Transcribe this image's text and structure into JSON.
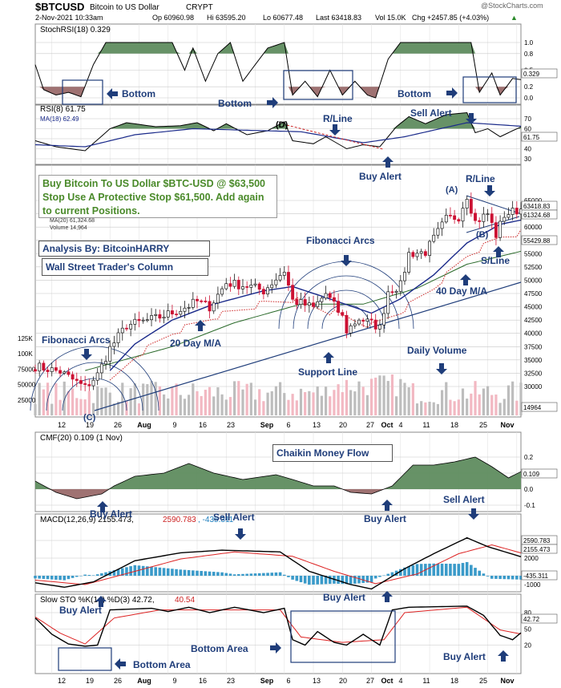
{
  "header": {
    "symbol": "$BTCUSD",
    "name": "Bitcoin to US Dollar",
    "exchange": "CRYPT",
    "date": "2-Nov-2021 10:33am",
    "open": "Op 60960.98",
    "high": "Hi 63595.20",
    "low": "Lo 60677.48",
    "last": "Last 63418.83",
    "volume": "Vol 15.0K",
    "change": "Chg +2457.85 (+4.03%)",
    "change_arrow": "▲",
    "copyright": "@StockCharts.com"
  },
  "colors": {
    "up": "#1a1a1a",
    "down": "#cc1133",
    "sma20": "#1a2a8a",
    "sma40": "#2a6a2a",
    "sar": "#cc2222",
    "grid": "#c8c8c8",
    "fill_green": "#5f8c5f",
    "fill_red": "#9a6a6a",
    "annotation": "#1f3d7a",
    "note_green": "#4a8a2a"
  },
  "x_axis_labels": [
    "12",
    "19",
    "26",
    "Aug",
    "9",
    "16",
    "23",
    "Sep",
    "6",
    "13",
    "20",
    "27",
    "Oct",
    "4",
    "11",
    "18",
    "25",
    "Nov"
  ],
  "panels": {
    "stochrsi": {
      "title": "StochRSI(18) 0.329",
      "last_value": "0.329",
      "ticks": [
        "1.0",
        "0.8",
        "0.5",
        "0.2",
        "0.0"
      ]
    },
    "rsi": {
      "title": "RSI(8) 61.75",
      "ma_label": "MA(18) 62.49",
      "last_value": "61.75",
      "ticks": [
        "70",
        "60",
        "50",
        "40",
        "30"
      ]
    },
    "price": {
      "legend_sma20": "MA(20) 61,324.68",
      "legend_sma40": "MA(40) 55,429.88",
      "legend_volume": "Volume 14,964",
      "ticks": [
        "65000",
        "62500",
        "60000",
        "57500",
        "55000",
        "52500",
        "50000",
        "47500",
        "45000",
        "42500",
        "40000",
        "37500",
        "35000",
        "32500",
        "30000"
      ],
      "last_price_tag": "63418.83",
      "sma20_tag": "61324.68",
      "sma40_tag": "55429.88",
      "volume_tag": "14964",
      "volume_ticks": [
        "125K",
        "100K",
        "75000",
        "50000",
        "25000"
      ]
    },
    "cmf": {
      "title": "CMF(20) 0.109 (1 Nov)",
      "last_value": "0.109",
      "ticks": [
        "0.2",
        "0.1",
        "0.0",
        "-0.1"
      ]
    },
    "macd": {
      "title_main": "MACD(12,26,9) 2155.473,",
      "title_signal": "2590.783",
      "title_hist": ", -435.311",
      "ticks": [
        "4000",
        "2000",
        "0",
        "-1000"
      ],
      "macd_tag": "2155.473",
      "signal_tag": "2590.783",
      "hist_tag": "-435.311"
    },
    "slowsto": {
      "title_main": "Slow STO %K(14) %D(3) 42.72,",
      "title_d": "40.54",
      "ticks": [
        "80",
        "50",
        "20"
      ],
      "k_tag": "42.72"
    }
  },
  "annotations": {
    "note_main": "Buy Bitcoin To US Dollar $BTC-USD @ $63,500 Stop Use A Protective Stop $61,500. Add again to current Positions.",
    "analysis_by": "Analysis By: BitcoinHARRY",
    "column": "Wall Street Trader's Column",
    "bottom_1": "Bottom",
    "bottom_2": "Bottom",
    "bottom_3": "Bottom",
    "r_line_rsi": "R/Line",
    "sell_alert_rsi": "Sell Alert",
    "buy_alert_rsi": "Buy Alert",
    "d_label": "(D)",
    "a_label": "(A)",
    "b_label": "(B)",
    "c_label": "(C)",
    "r_line_price": "R/Line",
    "s_line": "S/Line",
    "ma40_label": "40 Day M/A",
    "ma20_label": "20 Day M/A",
    "fib_arcs_1": "Fibonacci Arcs",
    "fib_arcs_2": "Fibonacci Arcs",
    "support_line": "Support Line",
    "daily_volume": "Daily Volume",
    "cmf_label": "Chaikin Money Flow",
    "buy_alert_cmf_1": "Buy Alert",
    "buy_alert_cmf_2": "Buy Alert",
    "sell_alert_macd_1": "Sell Alert",
    "sell_alert_macd_2": "Sell Alert",
    "buy_alert_macd": "Buy Alert",
    "buy_alert_sto_1": "Buy Alert",
    "buy_alert_sto_2": "Buy Alert",
    "bottom_area_1": "Bottom Area",
    "bottom_area_2": "Bottom Area"
  },
  "chart_data": {
    "type": "candlestick",
    "title": "$BTCUSD Bitcoin to US Dollar CRYPT",
    "x_start": "2021-07-08",
    "x_end": "2021-11-02",
    "ylim": [
      30000,
      67000
    ],
    "close_anchors": [
      [
        "2021-07-08",
        33800
      ],
      [
        "2021-07-14",
        32800
      ],
      [
        "2021-07-20",
        29800
      ],
      [
        "2021-07-23",
        32200
      ],
      [
        "2021-07-26",
        37200
      ],
      [
        "2021-07-30",
        41500
      ],
      [
        "2021-08-06",
        42800
      ],
      [
        "2021-08-12",
        44500
      ],
      [
        "2021-08-16",
        46000
      ],
      [
        "2021-08-19",
        45000
      ],
      [
        "2021-08-23",
        49500
      ],
      [
        "2021-08-29",
        48800
      ],
      [
        "2021-09-01",
        48000
      ],
      [
        "2021-09-06",
        51800
      ],
      [
        "2021-09-08",
        46200
      ],
      [
        "2021-09-13",
        44800
      ],
      [
        "2021-09-16",
        47500
      ],
      [
        "2021-09-20",
        43000
      ],
      [
        "2021-09-21",
        40500
      ],
      [
        "2021-09-24",
        42800
      ],
      [
        "2021-09-28",
        41500
      ],
      [
        "2021-09-29",
        41000
      ],
      [
        "2021-10-01",
        48000
      ],
      [
        "2021-10-04",
        49000
      ],
      [
        "2021-10-06",
        55000
      ],
      [
        "2021-10-10",
        55300
      ],
      [
        "2021-10-15",
        61500
      ],
      [
        "2021-10-18",
        62000
      ],
      [
        "2021-10-20",
        66000
      ],
      [
        "2021-10-22",
        61000
      ],
      [
        "2021-10-25",
        62500
      ],
      [
        "2021-10-27",
        58500
      ],
      [
        "2021-10-29",
        62300
      ],
      [
        "2021-11-02",
        63418
      ]
    ],
    "sma20_anchors": [
      [
        "2021-07-26",
        33000
      ],
      [
        "2021-08-01",
        38000
      ],
      [
        "2021-08-10",
        42500
      ],
      [
        "2021-08-20",
        45500
      ],
      [
        "2021-09-01",
        48000
      ],
      [
        "2021-09-08",
        48800
      ],
      [
        "2021-09-15",
        47000
      ],
      [
        "2021-09-27",
        43800
      ],
      [
        "2021-10-04",
        46500
      ],
      [
        "2021-10-12",
        51000
      ],
      [
        "2021-10-20",
        57000
      ],
      [
        "2021-10-28",
        60500
      ],
      [
        "2021-11-02",
        61324
      ]
    ],
    "sma40_anchors": [
      [
        "2021-07-20",
        33000
      ],
      [
        "2021-08-10",
        37500
      ],
      [
        "2021-08-25",
        42000
      ],
      [
        "2021-09-10",
        45500
      ],
      [
        "2021-09-25",
        45500
      ],
      [
        "2021-10-08",
        48500
      ],
      [
        "2021-10-20",
        53000
      ],
      [
        "2021-11-02",
        55429
      ]
    ],
    "stochrsi_anchors": [
      [
        "2021-07-08",
        0.6
      ],
      [
        "2021-07-10",
        0.15
      ],
      [
        "2021-07-13",
        0.05
      ],
      [
        "2021-07-16",
        0.1
      ],
      [
        "2021-07-19",
        0.02
      ],
      [
        "2021-07-22",
        0.6
      ],
      [
        "2021-07-25",
        1.0
      ],
      [
        "2021-08-10",
        1.0
      ],
      [
        "2021-08-13",
        0.5
      ],
      [
        "2021-08-15",
        0.9
      ],
      [
        "2021-08-18",
        0.3
      ],
      [
        "2021-08-21",
        0.8
      ],
      [
        "2021-08-24",
        1.0
      ],
      [
        "2021-08-27",
        0.3
      ],
      [
        "2021-08-30",
        0.6
      ],
      [
        "2021-09-02",
        0.9
      ],
      [
        "2021-09-06",
        1.0
      ],
      [
        "2021-09-08",
        0.05
      ],
      [
        "2021-09-11",
        0.3
      ],
      [
        "2021-09-14",
        0.02
      ],
      [
        "2021-09-17",
        0.5
      ],
      [
        "2021-09-20",
        0.05
      ],
      [
        "2021-09-23",
        0.3
      ],
      [
        "2021-09-26",
        0.05
      ],
      [
        "2021-09-28",
        0.0
      ],
      [
        "2021-10-01",
        0.7
      ],
      [
        "2021-10-04",
        1.0
      ],
      [
        "2021-10-21",
        1.0
      ],
      [
        "2021-10-23",
        0.1
      ],
      [
        "2021-10-26",
        0.45
      ],
      [
        "2021-10-28",
        0.05
      ],
      [
        "2021-10-31",
        0.35
      ],
      [
        "2021-11-02",
        0.329
      ]
    ],
    "rsi_anchors": [
      [
        "2021-07-08",
        48
      ],
      [
        "2021-07-13",
        42
      ],
      [
        "2021-07-20",
        38
      ],
      [
        "2021-07-26",
        60
      ],
      [
        "2021-07-30",
        66
      ],
      [
        "2021-08-06",
        62
      ],
      [
        "2021-08-12",
        63
      ],
      [
        "2021-08-16",
        66
      ],
      [
        "2021-08-20",
        58
      ],
      [
        "2021-08-23",
        65
      ],
      [
        "2021-08-28",
        54
      ],
      [
        "2021-09-02",
        58
      ],
      [
        "2021-09-06",
        67
      ],
      [
        "2021-09-08",
        48
      ],
      [
        "2021-09-13",
        45
      ],
      [
        "2021-09-16",
        52
      ],
      [
        "2021-09-21",
        40
      ],
      [
        "2021-09-25",
        44
      ],
      [
        "2021-09-29",
        42
      ],
      [
        "2021-10-03",
        62
      ],
      [
        "2021-10-06",
        72
      ],
      [
        "2021-10-10",
        65
      ],
      [
        "2021-10-15",
        74
      ],
      [
        "2021-10-20",
        76
      ],
      [
        "2021-10-22",
        56
      ],
      [
        "2021-10-25",
        60
      ],
      [
        "2021-10-28",
        52
      ],
      [
        "2021-10-31",
        58
      ],
      [
        "2021-11-02",
        61.75
      ]
    ],
    "rsi_ma_anchors": [
      [
        "2021-07-08",
        44
      ],
      [
        "2021-07-20",
        42
      ],
      [
        "2021-08-01",
        54
      ],
      [
        "2021-08-15",
        60
      ],
      [
        "2021-09-01",
        58
      ],
      [
        "2021-09-10",
        57
      ],
      [
        "2021-09-25",
        46
      ],
      [
        "2021-10-05",
        52
      ],
      [
        "2021-10-20",
        66
      ],
      [
        "2021-11-02",
        62.49
      ]
    ],
    "cmf_anchors": [
      [
        "2021-07-08",
        0.05
      ],
      [
        "2021-07-13",
        -0.02
      ],
      [
        "2021-07-18",
        -0.06
      ],
      [
        "2021-07-24",
        -0.03
      ],
      [
        "2021-07-27",
        0.02
      ],
      [
        "2021-08-01",
        0.08
      ],
      [
        "2021-08-08",
        0.1
      ],
      [
        "2021-08-14",
        0.16
      ],
      [
        "2021-08-20",
        0.1
      ],
      [
        "2021-08-27",
        0.06
      ],
      [
        "2021-09-04",
        0.09
      ],
      [
        "2021-09-08",
        0.06
      ],
      [
        "2021-09-13",
        0.02
      ],
      [
        "2021-09-18",
        0.02
      ],
      [
        "2021-09-22",
        -0.02
      ],
      [
        "2021-09-27",
        -0.03
      ],
      [
        "2021-10-02",
        0.02
      ],
      [
        "2021-10-07",
        0.15
      ],
      [
        "2021-10-12",
        0.15
      ],
      [
        "2021-10-17",
        0.17
      ],
      [
        "2021-10-22",
        0.2
      ],
      [
        "2021-10-26",
        0.14
      ],
      [
        "2021-10-30",
        0.07
      ],
      [
        "2021-11-02",
        0.109
      ]
    ],
    "macd_anchors": [
      [
        "2021-07-08",
        -800
      ],
      [
        "2021-07-15",
        -1300
      ],
      [
        "2021-07-22",
        -700
      ],
      [
        "2021-08-01",
        1700
      ],
      [
        "2021-08-12",
        2600
      ],
      [
        "2021-08-22",
        2900
      ],
      [
        "2021-09-05",
        2700
      ],
      [
        "2021-09-12",
        500
      ],
      [
        "2021-09-22",
        -1000
      ],
      [
        "2021-09-27",
        -1500
      ],
      [
        "2021-10-05",
        800
      ],
      [
        "2021-10-12",
        2500
      ],
      [
        "2021-10-20",
        4300
      ],
      [
        "2021-10-25",
        3300
      ],
      [
        "2021-11-02",
        2155
      ]
    ],
    "macd_signal_anchors": [
      [
        "2021-07-08",
        -500
      ],
      [
        "2021-07-20",
        -1000
      ],
      [
        "2021-08-01",
        500
      ],
      [
        "2021-08-12",
        1900
      ],
      [
        "2021-08-25",
        2700
      ],
      [
        "2021-09-08",
        2200
      ],
      [
        "2021-09-18",
        500
      ],
      [
        "2021-09-28",
        -900
      ],
      [
        "2021-10-08",
        200
      ],
      [
        "2021-10-18",
        2500
      ],
      [
        "2021-10-26",
        3500
      ],
      [
        "2021-11-02",
        2590
      ]
    ],
    "slowsto_k_anchors": [
      [
        "2021-07-08",
        70
      ],
      [
        "2021-07-12",
        40
      ],
      [
        "2021-07-16",
        22
      ],
      [
        "2021-07-20",
        18
      ],
      [
        "2021-07-23",
        20
      ],
      [
        "2021-07-26",
        85
      ],
      [
        "2021-08-05",
        88
      ],
      [
        "2021-08-09",
        82
      ],
      [
        "2021-08-14",
        90
      ],
      [
        "2021-08-19",
        80
      ],
      [
        "2021-08-25",
        90
      ],
      [
        "2021-09-01",
        80
      ],
      [
        "2021-09-06",
        88
      ],
      [
        "2021-09-08",
        30
      ],
      [
        "2021-09-11",
        20
      ],
      [
        "2021-09-14",
        45
      ],
      [
        "2021-09-18",
        25
      ],
      [
        "2021-09-21",
        20
      ],
      [
        "2021-09-25",
        40
      ],
      [
        "2021-09-29",
        20
      ],
      [
        "2021-10-02",
        85
      ],
      [
        "2021-10-06",
        90
      ],
      [
        "2021-10-20",
        92
      ],
      [
        "2021-10-24",
        75
      ],
      [
        "2021-10-28",
        38
      ],
      [
        "2021-10-31",
        30
      ],
      [
        "2021-11-02",
        42.72
      ]
    ],
    "slowsto_d_anchors": [
      [
        "2021-07-08",
        72
      ],
      [
        "2021-07-14",
        42
      ],
      [
        "2021-07-20",
        22
      ],
      [
        "2021-07-27",
        70
      ],
      [
        "2021-08-07",
        85
      ],
      [
        "2021-08-20",
        85
      ],
      [
        "2021-09-05",
        85
      ],
      [
        "2021-09-10",
        35
      ],
      [
        "2021-09-20",
        25
      ],
      [
        "2021-09-30",
        30
      ],
      [
        "2021-10-05",
        80
      ],
      [
        "2021-10-20",
        90
      ],
      [
        "2021-10-28",
        48
      ],
      [
        "2021-11-02",
        40.54
      ]
    ]
  }
}
